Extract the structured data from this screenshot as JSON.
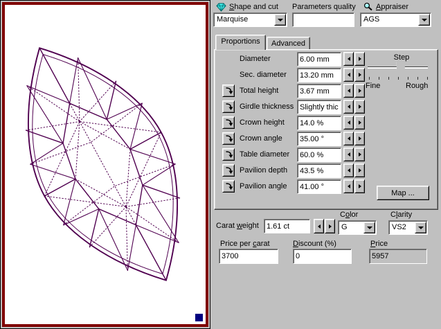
{
  "viewer": {
    "frame_color": "#800000",
    "wire_color": "#500050",
    "handle_color": "#000080"
  },
  "header": {
    "shape": {
      "accel_pre": "",
      "accel": "S",
      "accel_post": "hape and cut",
      "value": "Marquise"
    },
    "quality": {
      "label": "Parameters quality",
      "value": "",
      "placeholder": ""
    },
    "appraiser": {
      "accel_pre": "",
      "accel": "A",
      "accel_post": "ppraiser",
      "value": "AGS"
    }
  },
  "tabs": {
    "proportions": "Proportions",
    "advanced": "Advanced"
  },
  "parameters": [
    {
      "label": "Diameter",
      "value": "6.00 mm",
      "locked": false
    },
    {
      "label": "Sec. diameter",
      "value": "13.20 mm",
      "locked": false
    },
    {
      "label": "Total height",
      "value": "3.67 mm",
      "locked": true
    },
    {
      "label": "Girdle thickness",
      "value": "Slightly thic",
      "locked": true
    },
    {
      "label": "Crown height",
      "value": "14.0 %",
      "locked": true
    },
    {
      "label": "Crown angle",
      "value": "35.00 °",
      "locked": true
    },
    {
      "label": "Table diameter",
      "value": "60.0 %",
      "locked": true
    },
    {
      "label": "Pavilion depth",
      "value": "43.5 %",
      "locked": true
    },
    {
      "label": "Pavilion angle",
      "value": "41.00 °",
      "locked": true
    }
  ],
  "step": {
    "label": "Step",
    "fine": "Fine",
    "rough": "Rough",
    "position_percent": 55
  },
  "map_button": "Map ...",
  "pricing": {
    "carat": {
      "accel_pre": "Carat ",
      "accel": "w",
      "accel_post": "eight",
      "value": "1.61 ct"
    },
    "color": {
      "accel_pre": "C",
      "accel": "o",
      "accel_post": "lor",
      "value": "G"
    },
    "clarity": {
      "accel_pre": "C",
      "accel": "l",
      "accel_post": "arity",
      "value": "VS2"
    },
    "price_per_carat": {
      "accel_pre": "Price per ",
      "accel": "c",
      "accel_post": "arat",
      "value": "3700"
    },
    "discount": {
      "accel_pre": "",
      "accel": "D",
      "accel_post": "iscount (%)",
      "value": "0"
    },
    "price": {
      "accel_pre": "",
      "accel": "P",
      "accel_post": "rice",
      "value": "5957"
    }
  }
}
